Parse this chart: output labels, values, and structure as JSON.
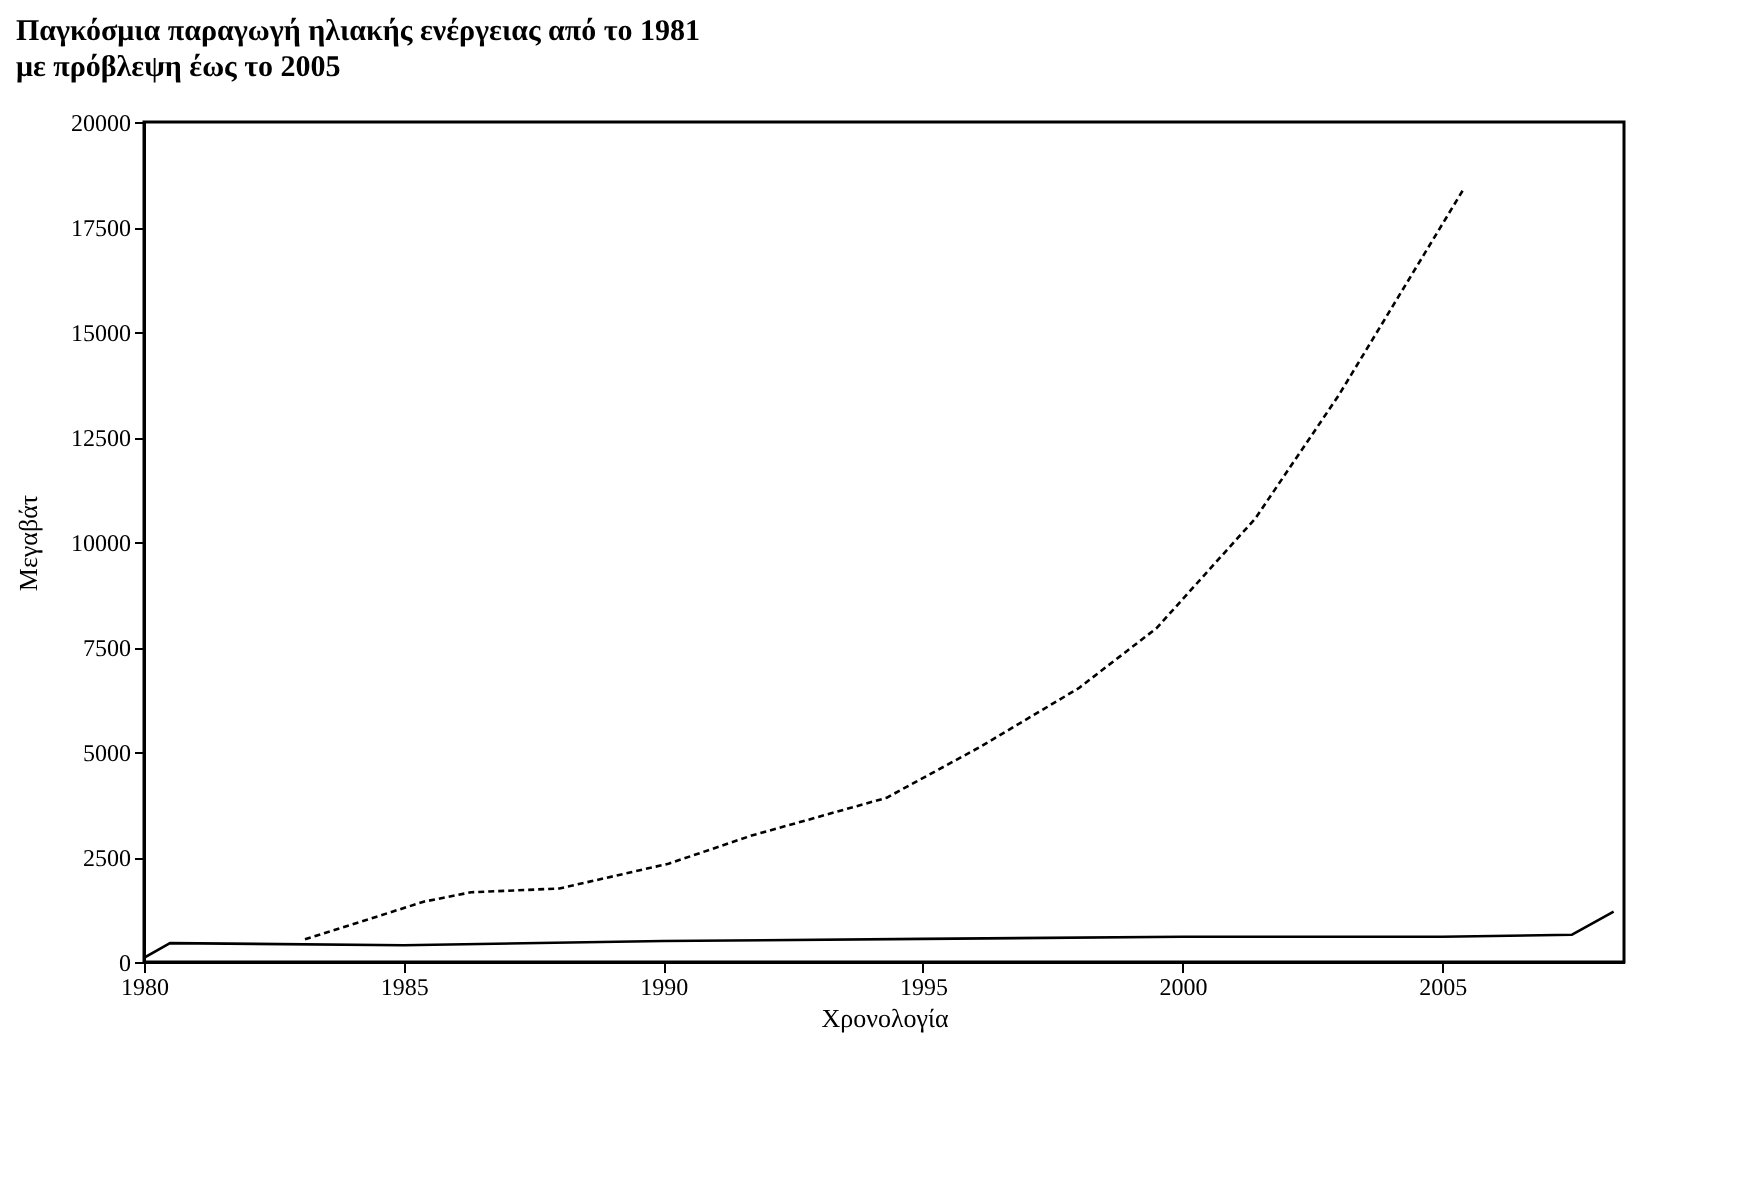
{
  "chart_data": {
    "type": "line",
    "title": "Παγκόσμια παραγωγή ηλιακής ενέργειας από το 1981 με πρόβλεψη έως το 2005",
    "xlabel": "Χρονολογία",
    "ylabel": "Μεγαβάτ",
    "xlim": [
      1980,
      2008.5
    ],
    "xticks": [
      1980,
      1985,
      1990,
      1995,
      2000,
      2005
    ],
    "ylim": [
      0,
      20000
    ],
    "yticks": [
      0,
      2500,
      5000,
      7500,
      10000,
      12500,
      15000,
      17500,
      20000
    ],
    "grid": false,
    "marker": "none",
    "series": [
      {
        "color": "#000000",
        "line_style": "dashed",
        "x": [
          1983.1,
          1985.4,
          1986.3,
          1988,
          1990.1,
          1991.7,
          1994.3,
          1996.1,
          1998,
          1999.5,
          2001.4,
          2003,
          2005.4
        ],
        "values": [
          540,
          1440,
          1660,
          1750,
          2340,
          3010,
          3910,
          5120,
          6520,
          7950,
          10560,
          13480,
          18380
        ]
      },
      {
        "color": "#000000",
        "line_style": "solid",
        "x": [
          1980,
          1980.5,
          1985,
          1990,
          1995,
          2000,
          2005,
          2007.5,
          2008.3
        ],
        "values": [
          100,
          450,
          400,
          500,
          550,
          600,
          600,
          650,
          1200
        ]
      }
    ]
  }
}
